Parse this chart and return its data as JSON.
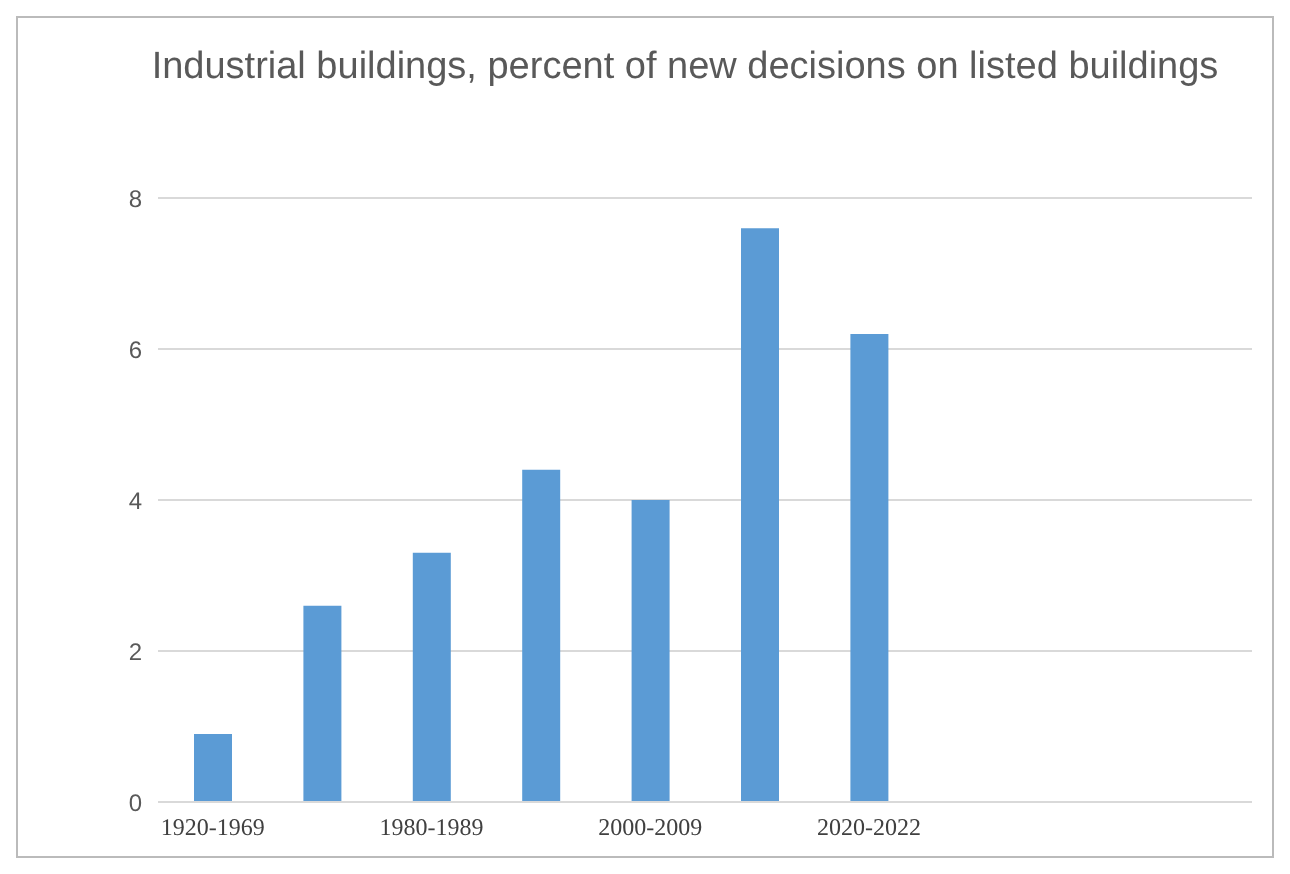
{
  "chart_data": {
    "type": "bar",
    "title": "Industrial buildings, percent of new decisions on listed buildings",
    "categories": [
      "1920-1969",
      null,
      "1980-1989",
      null,
      "2000-2009",
      null,
      "2020-2022",
      null,
      null,
      null
    ],
    "values": [
      0.9,
      2.6,
      3.3,
      4.4,
      4.0,
      7.6,
      6.2,
      null,
      null,
      null
    ],
    "color": "#5b9bd5",
    "ylim": [
      0,
      8
    ],
    "yticks": [
      0,
      2,
      4,
      6,
      8
    ],
    "grid": "y"
  }
}
